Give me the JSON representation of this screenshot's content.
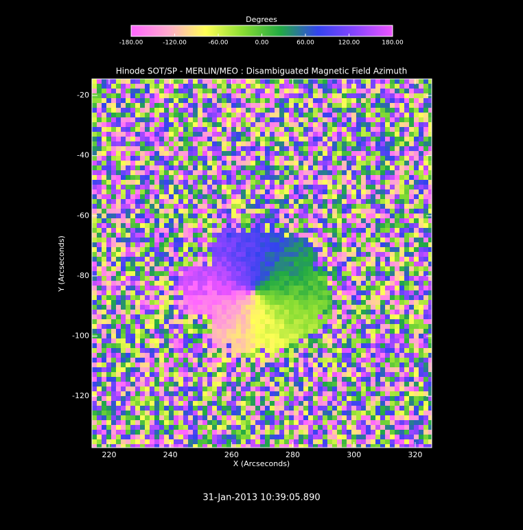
{
  "chart_data": {
    "type": "image",
    "title": "Hinode SOT/SP - MERLIN/MEO : Disambiguated Magnetic Field Azimuth",
    "xlabel": "X (Arcseconds)",
    "ylabel": "Y (Arcseconds)",
    "xlim": [
      214.4,
      325.4
    ],
    "ylim": [
      -137.1,
      -14.5
    ],
    "xticks": [
      220,
      240,
      260,
      280,
      300,
      320
    ],
    "yticks": [
      -20,
      -40,
      -60,
      -80,
      -100,
      -120
    ],
    "colorbar": {
      "label": "Degrees",
      "clim": [
        -180,
        180
      ],
      "ticks": [
        {
          "value": -180,
          "label": "-180.00"
        },
        {
          "value": -120,
          "label": "-120.00"
        },
        {
          "value": -60,
          "label": "-60.00"
        },
        {
          "value": 0,
          "label": "0.00"
        },
        {
          "value": 60,
          "label": "60.00"
        },
        {
          "value": 120,
          "label": "120.00"
        },
        {
          "value": 180,
          "label": "180.00"
        }
      ],
      "colormap": [
        "#ff66ff",
        "#ffaacc",
        "#ffff55",
        "#88dd33",
        "#22aa44",
        "#3344ee",
        "#8844ff",
        "#ee55ff"
      ]
    },
    "annotation": "31-Jan-2013 10:39:05.890"
  }
}
